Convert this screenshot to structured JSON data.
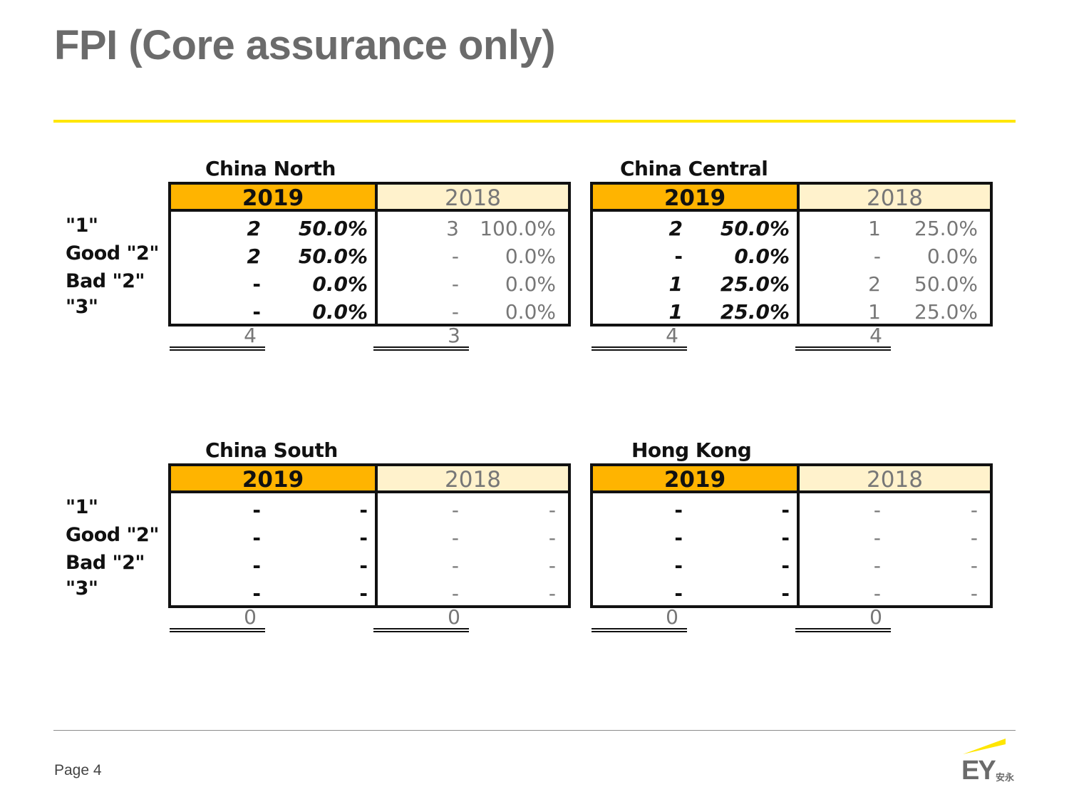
{
  "slide": {
    "title": "FPI (Core assurance only)",
    "page_label": "Page 4",
    "accent_color": "#ffe600",
    "logo_text": "EY",
    "logo_cn": "安永"
  },
  "row_labels": [
    "\"1\"",
    "Good \"2\"",
    "Bad \"2\"",
    "\"3\""
  ],
  "regions": [
    {
      "name": "China North",
      "year_a": "2019",
      "year_b": "2018",
      "rows": [
        [
          "2",
          "50.0%",
          "3",
          "100.0%"
        ],
        [
          "2",
          "50.0%",
          "-",
          "0.0%"
        ],
        [
          "-",
          "0.0%",
          "-",
          "0.0%"
        ],
        [
          "-",
          "0.0%",
          "-",
          "0.0%"
        ]
      ],
      "totals": [
        "4",
        "3"
      ]
    },
    {
      "name": "China Central",
      "year_a": "2019",
      "year_b": "2018",
      "rows": [
        [
          "2",
          "50.0%",
          "1",
          "25.0%"
        ],
        [
          "-",
          "0.0%",
          "-",
          "0.0%"
        ],
        [
          "1",
          "25.0%",
          "2",
          "50.0%"
        ],
        [
          "1",
          "25.0%",
          "1",
          "25.0%"
        ]
      ],
      "totals": [
        "4",
        "4"
      ]
    },
    {
      "name": "China South",
      "year_a": "2019",
      "year_b": "2018",
      "rows": [
        [
          "-",
          "-",
          "-",
          "-"
        ],
        [
          "-",
          "-",
          "-",
          "-"
        ],
        [
          "-",
          "-",
          "-",
          "-"
        ],
        [
          "-",
          "-",
          "-",
          "-"
        ]
      ],
      "totals": [
        "0",
        "0"
      ]
    },
    {
      "name": "Hong Kong",
      "year_a": "2019",
      "year_b": "2018",
      "rows": [
        [
          "-",
          "-",
          "-",
          "-"
        ],
        [
          "-",
          "-",
          "-",
          "-"
        ],
        [
          "-",
          "-",
          "-",
          "-"
        ],
        [
          "-",
          "-",
          "-",
          "-"
        ]
      ],
      "totals": [
        "0",
        "0"
      ]
    }
  ]
}
